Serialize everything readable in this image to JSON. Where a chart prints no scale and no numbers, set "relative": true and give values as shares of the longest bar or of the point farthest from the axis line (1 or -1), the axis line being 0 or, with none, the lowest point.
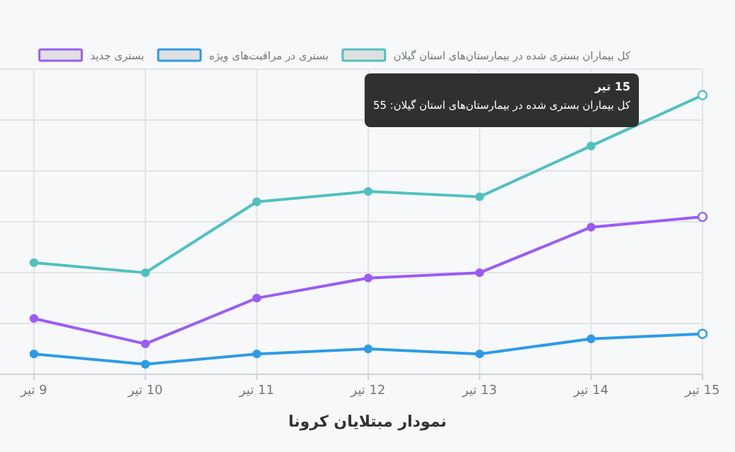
{
  "chart_data": {
    "type": "line",
    "title": "نمودار مبتلایان کرونا",
    "categories": [
      "9 تیر",
      "10 تیر",
      "11 تیر",
      "12 تیر",
      "13 تیر",
      "14 تیر",
      "15 تیر"
    ],
    "relative": true,
    "grid": true,
    "legend": "top",
    "marker": "circle",
    "line_style": "solid",
    "annotations": [
      "15 تیر",
      "کل بیماران بستری شده در بیمارستان‌های استان گیلان: 55"
    ],
    "series": [
      {
        "name": "کل بیماران بستری شده در بیمارستان‌های استان گیلان",
        "color": "#4fc1bf",
        "values": [
          0.4,
          0.364,
          0.618,
          0.655,
          0.636,
          0.818,
          1
        ]
      },
      {
        "name": "بستری در مراقبت‌های ویژه",
        "color": "#2d9be6",
        "values": [
          0.073,
          0.036,
          0.073,
          0.091,
          0.073,
          0.127,
          0.145
        ]
      },
      {
        "name": "بستری جدید",
        "color": "#9a5cf7",
        "values": [
          0.2,
          0.109,
          0.273,
          0.345,
          0.364,
          0.527,
          0.564
        ]
      }
    ]
  }
}
